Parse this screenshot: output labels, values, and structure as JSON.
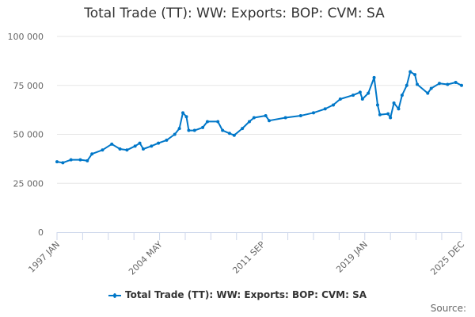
{
  "chart_data": {
    "type": "line",
    "title": "Total Trade (TT): WW: Exports: BOP: CVM: SA",
    "xlabel": "",
    "ylabel": "",
    "xlim": [
      "1997-01",
      "2025-12"
    ],
    "ylim": [
      0,
      100000
    ],
    "y_ticks": [
      {
        "value": 0,
        "label": "0"
      },
      {
        "value": 25000,
        "label": "25 000"
      },
      {
        "value": 50000,
        "label": "50 000"
      },
      {
        "value": 75000,
        "label": "75 000"
      },
      {
        "value": 100000,
        "label": "100 000"
      }
    ],
    "x_tick_labels": [
      {
        "date": "1997-01",
        "label": "1997 JAN"
      },
      {
        "date": "2004-05",
        "label": "2004 MAY"
      },
      {
        "date": "2011-09",
        "label": "2011 SEP"
      },
      {
        "date": "2019-01",
        "label": "2019 JAN"
      },
      {
        "date": "2025-12",
        "label": "2025 DEC"
      }
    ],
    "grid": "horizontal",
    "legend_placement": "bottom",
    "series": [
      {
        "name": "Total Trade (TT): WW: Exports: BOP: CVM: SA",
        "color": "#0077c8",
        "points": [
          [
            "1997-01",
            36000
          ],
          [
            "1997-06",
            35500
          ],
          [
            "1998-01",
            37000
          ],
          [
            "1998-09",
            37000
          ],
          [
            "1999-03",
            36500
          ],
          [
            "1999-07",
            40000
          ],
          [
            "2000-04",
            42000
          ],
          [
            "2000-12",
            45000
          ],
          [
            "2001-07",
            42500
          ],
          [
            "2002-01",
            42000
          ],
          [
            "2002-08",
            44000
          ],
          [
            "2002-12",
            45500
          ],
          [
            "2003-03",
            42500
          ],
          [
            "2003-10",
            44000
          ],
          [
            "2004-04",
            45500
          ],
          [
            "2004-11",
            47000
          ],
          [
            "2005-06",
            50000
          ],
          [
            "2005-10",
            53000
          ],
          [
            "2006-01",
            61000
          ],
          [
            "2006-04",
            59000
          ],
          [
            "2006-06",
            52000
          ],
          [
            "2006-11",
            52000
          ],
          [
            "2007-06",
            53500
          ],
          [
            "2007-10",
            56500
          ],
          [
            "2008-07",
            56500
          ],
          [
            "2008-11",
            52000
          ],
          [
            "2009-05",
            50500
          ],
          [
            "2009-09",
            49500
          ],
          [
            "2010-04",
            53000
          ],
          [
            "2010-10",
            56500
          ],
          [
            "2011-02",
            58500
          ],
          [
            "2011-12",
            59500
          ],
          [
            "2012-03",
            57000
          ],
          [
            "2013-05",
            58500
          ],
          [
            "2014-06",
            59500
          ],
          [
            "2015-05",
            61000
          ],
          [
            "2016-03",
            63000
          ],
          [
            "2016-10",
            65000
          ],
          [
            "2017-04",
            68000
          ],
          [
            "2018-03",
            70000
          ],
          [
            "2018-09",
            71500
          ],
          [
            "2018-11",
            68000
          ],
          [
            "2019-04",
            71000
          ],
          [
            "2019-09",
            79000
          ],
          [
            "2019-12",
            65000
          ],
          [
            "2020-02",
            60000
          ],
          [
            "2020-09",
            60500
          ],
          [
            "2020-11",
            58500
          ],
          [
            "2021-02",
            66000
          ],
          [
            "2021-06",
            63000
          ],
          [
            "2021-09",
            70000
          ],
          [
            "2022-01",
            75000
          ],
          [
            "2022-04",
            82000
          ],
          [
            "2022-08",
            80500
          ],
          [
            "2022-10",
            75500
          ],
          [
            "2023-07",
            71000
          ],
          [
            "2023-10",
            73500
          ],
          [
            "2024-05",
            76000
          ],
          [
            "2024-12",
            75500
          ],
          [
            "2025-07",
            76500
          ],
          [
            "2025-12",
            75000
          ]
        ]
      }
    ]
  },
  "source_label": "Source:"
}
